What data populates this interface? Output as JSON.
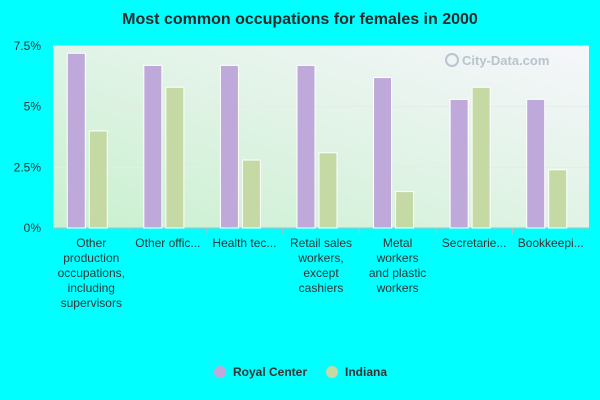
{
  "chart_data": {
    "type": "bar",
    "title": "Most common occupations for females in 2000",
    "categories": [
      [
        "Other",
        "production",
        "occupations,",
        "including",
        "supervisors"
      ],
      [
        "Other offic..."
      ],
      [
        "Health tec..."
      ],
      [
        "Retail sales",
        "workers,",
        "except",
        "cashiers"
      ],
      [
        "Metal",
        "workers",
        "and plastic",
        "workers"
      ],
      [
        "Secretarie..."
      ],
      [
        "Bookkeepi..."
      ]
    ],
    "series": [
      {
        "name": "Royal Center",
        "color": "#bfa8da",
        "values": [
          7.2,
          6.7,
          6.7,
          6.7,
          6.2,
          5.3,
          5.3
        ]
      },
      {
        "name": "Indiana",
        "color": "#c5d9a5",
        "values": [
          4.0,
          5.8,
          2.8,
          3.1,
          1.5,
          5.8,
          2.4
        ]
      }
    ],
    "ylim": [
      0,
      7.5
    ],
    "yticks": [
      "0%",
      "2.5%",
      "5%",
      "7.5%"
    ],
    "ytick_values": [
      0,
      2.5,
      5,
      7.5
    ],
    "grid": true,
    "legend": "bottom"
  },
  "watermark": "City-Data.com"
}
